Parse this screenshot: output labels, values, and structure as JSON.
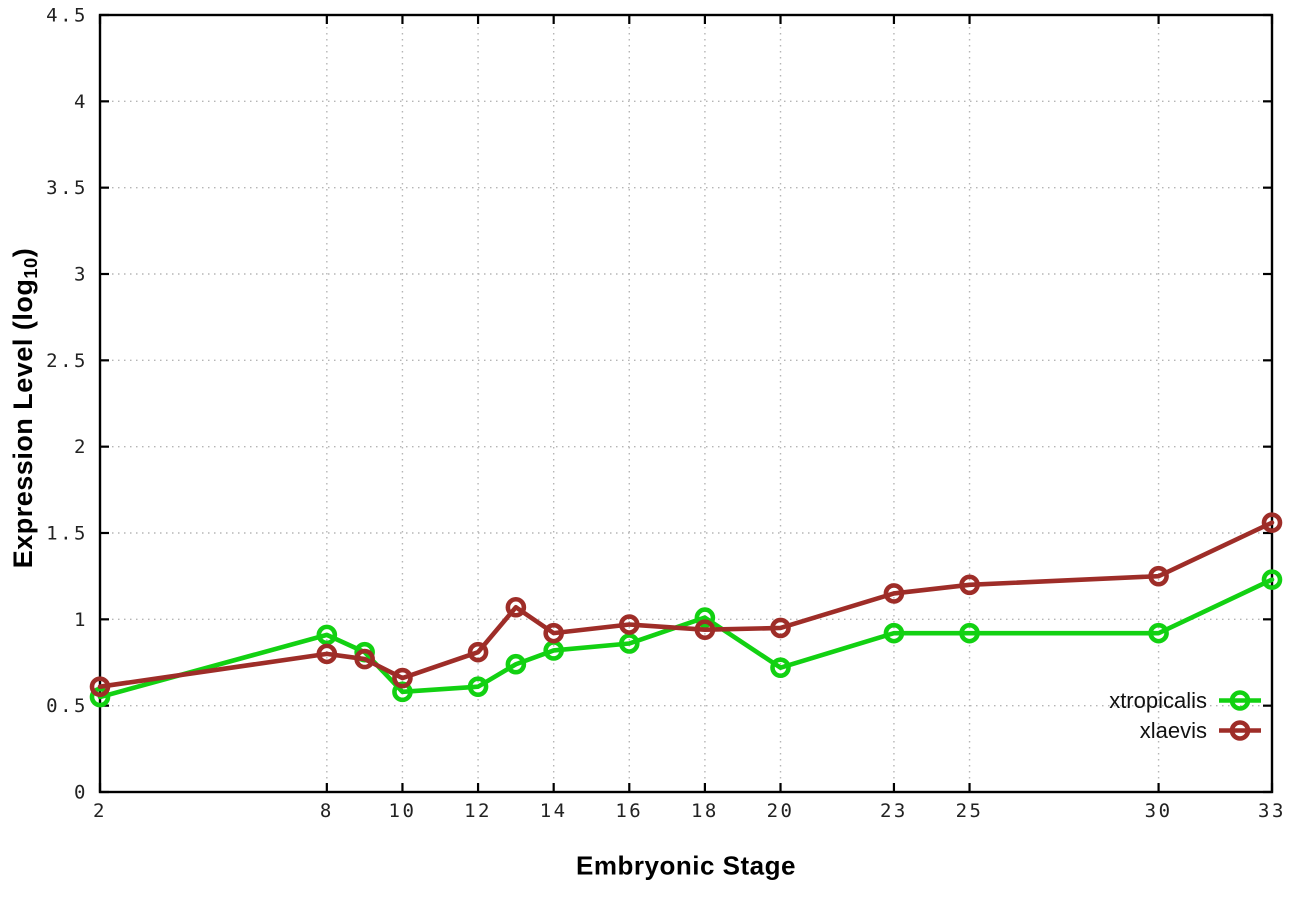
{
  "chart_data": {
    "type": "line",
    "title": "",
    "xlabel": "Embryonic Stage",
    "ylabel": "Expression Level (log10)",
    "ylabel_parts": {
      "main": "Expression Level (log",
      "sub": "10",
      "end": ")"
    },
    "x": [
      2,
      8,
      9,
      10,
      12,
      13,
      14,
      16,
      18,
      20,
      23,
      25,
      30,
      33
    ],
    "series": [
      {
        "name": "xtropicalis",
        "color": "#12d112",
        "values": [
          0.55,
          0.91,
          0.81,
          0.58,
          0.61,
          0.74,
          0.82,
          0.86,
          1.01,
          0.72,
          0.92,
          0.92,
          0.92,
          1.23
        ]
      },
      {
        "name": "xlaevis",
        "color": "#9e2d28",
        "values": [
          0.61,
          0.8,
          0.77,
          0.66,
          0.81,
          1.07,
          0.92,
          0.97,
          0.94,
          0.95,
          1.15,
          1.2,
          1.25,
          1.56
        ]
      }
    ],
    "xticks": [
      2,
      8,
      10,
      12,
      14,
      16,
      18,
      20,
      23,
      25,
      30,
      33
    ],
    "yticks": [
      0,
      0.5,
      1,
      1.5,
      2,
      2.5,
      3,
      3.5,
      4,
      4.5
    ],
    "xlim": [
      2,
      33
    ],
    "ylim": [
      0,
      4.5
    ],
    "grid": true,
    "legend_position": "bottom-right",
    "colors": {
      "axis": "#000000",
      "grid": "#b5b5b5",
      "tick_label": "#222222",
      "background": "#ffffff"
    }
  }
}
